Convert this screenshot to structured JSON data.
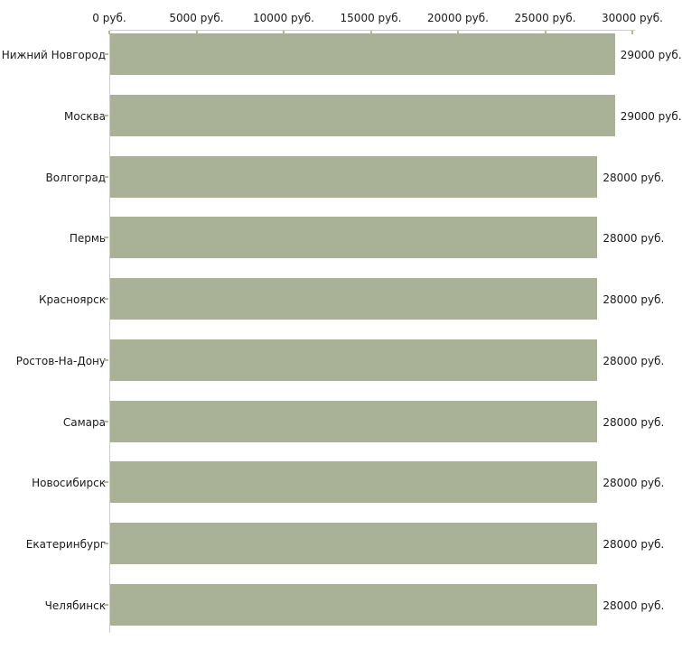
{
  "chart_data": {
    "type": "bar",
    "orientation": "horizontal",
    "title": "",
    "xlabel": "",
    "ylabel": "",
    "unit": "руб.",
    "xlim": [
      0,
      30000
    ],
    "grid": false,
    "legend": false,
    "categories": [
      "Нижний Новгород",
      "Москва",
      "Волгоград",
      "Пермь",
      "Красноярск",
      "Ростов-На-Дону",
      "Самара",
      "Новосибирск",
      "Екатеринбург",
      "Челябинск"
    ],
    "values": [
      29000,
      29000,
      28000,
      28000,
      28000,
      28000,
      28000,
      28000,
      28000,
      28000
    ],
    "value_labels": [
      "29000 руб.",
      "29000 руб.",
      "28000 руб.",
      "28000 руб.",
      "28000 руб.",
      "28000 руб.",
      "28000 руб.",
      "28000 руб.",
      "28000 руб.",
      "28000 руб."
    ],
    "x_ticks": [
      {
        "value": 0,
        "label": "0 руб."
      },
      {
        "value": 5000,
        "label": "5000 руб."
      },
      {
        "value": 10000,
        "label": "10000 руб."
      },
      {
        "value": 15000,
        "label": "15000 руб."
      },
      {
        "value": 20000,
        "label": "20000 руб."
      },
      {
        "value": 25000,
        "label": "25000 руб."
      },
      {
        "value": 30000,
        "label": "30000 руб."
      }
    ],
    "colors": {
      "bar": "#a9b296",
      "axis_line": "#cccccc",
      "tick_mark": "#b9b98e",
      "text": "#1a1a1a",
      "background": "#ffffff"
    }
  }
}
